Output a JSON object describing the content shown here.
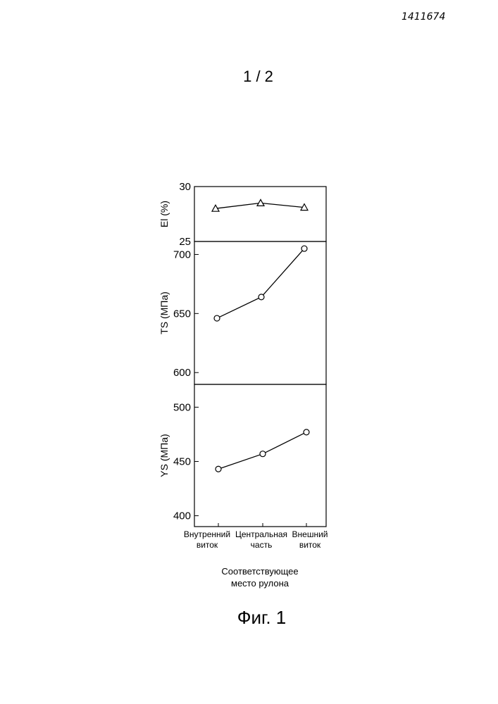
{
  "header": {
    "doc_number": "1411674",
    "page_number": "1 / 2"
  },
  "figure": {
    "caption": "Фиг. 1"
  },
  "chart_data": {
    "type": "line",
    "categories": [
      "Внутренний виток",
      "Центральная часть",
      "Внешний виток"
    ],
    "category_lines": [
      [
        "Внутренний",
        "виток"
      ],
      [
        "Центральная",
        "часть"
      ],
      [
        "Внешний",
        "виток"
      ]
    ],
    "xlabel_lines": [
      "Соответствующее",
      "место рулона"
    ],
    "panels": [
      {
        "ylabel": "El (%)",
        "ylim": [
          25,
          30
        ],
        "ticks": [
          {
            "value": 30,
            "label": "30"
          },
          {
            "value": 25,
            "label": "25"
          }
        ],
        "marker": "triangle",
        "values": [
          28.0,
          28.5,
          28.1
        ]
      },
      {
        "ylabel": "TS (МПа)",
        "ylim": [
          590,
          711
        ],
        "ticks": [
          {
            "value": 700,
            "label": "700"
          },
          {
            "value": 650,
            "label": "650"
          },
          {
            "value": 600,
            "label": "600"
          }
        ],
        "marker": "circle",
        "values": [
          646,
          664,
          705
        ]
      },
      {
        "ylabel": "YS (МПа)",
        "ylim": [
          390,
          521
        ],
        "ticks": [
          {
            "value": 500,
            "label": "500"
          },
          {
            "value": 450,
            "label": "450"
          },
          {
            "value": 400,
            "label": "400"
          }
        ],
        "marker": "circle",
        "values": [
          443,
          457,
          477
        ]
      }
    ]
  }
}
